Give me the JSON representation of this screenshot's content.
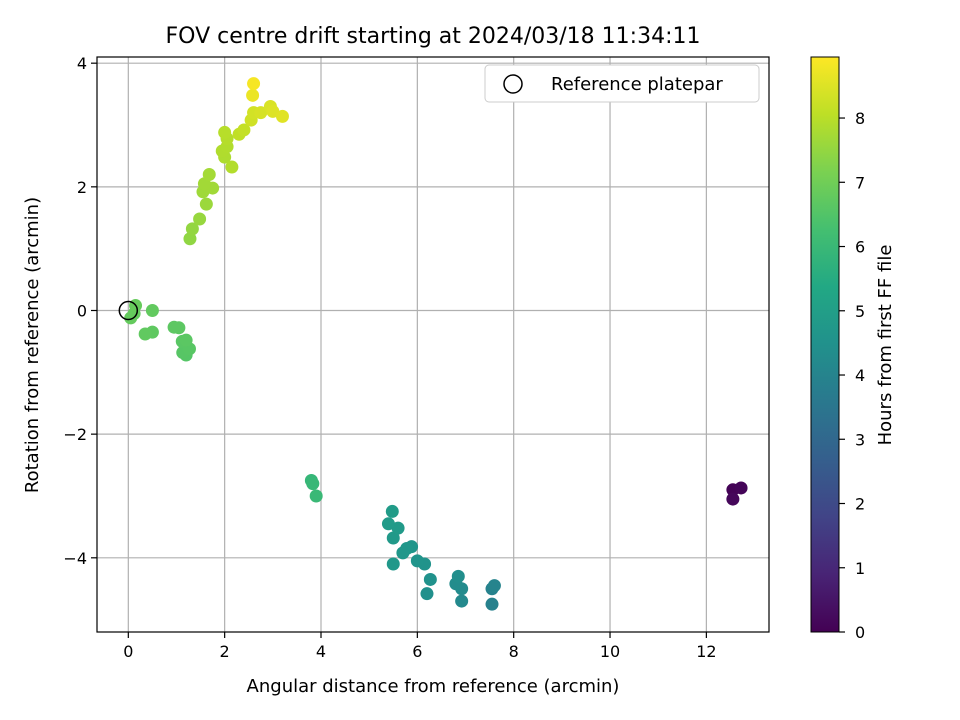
{
  "chart_data": {
    "type": "scatter",
    "title": "FOV centre drift starting at 2024/03/18 11:34:11",
    "xlabel": "Angular distance from reference (arcmin)",
    "ylabel": "Rotation from reference (arcmin)",
    "xlim": [
      -0.65,
      13.3
    ],
    "ylim": [
      -5.2,
      4.1
    ],
    "xticks": [
      0,
      2,
      4,
      6,
      8,
      10,
      12
    ],
    "yticks": [
      -4,
      -2,
      0,
      2,
      4
    ],
    "xtick_labels": [
      "0",
      "2",
      "4",
      "6",
      "8",
      "10",
      "12"
    ],
    "ytick_labels": [
      "−4",
      "−2",
      "0",
      "2",
      "4"
    ],
    "grid": true,
    "legend": {
      "placement": "top-right",
      "entries": [
        "Reference platepar"
      ]
    },
    "reference_point": {
      "x": 0.0,
      "y": 0.0
    },
    "colormap": "viridis",
    "colorbar": {
      "label": "Hours from first FF file",
      "range": [
        0,
        8.95
      ],
      "ticks": [
        0,
        1,
        2,
        3,
        4,
        5,
        6,
        7,
        8
      ],
      "tick_labels": [
        "0",
        "1",
        "2",
        "3",
        "4",
        "5",
        "6",
        "7",
        "8"
      ]
    },
    "points": [
      {
        "x": 12.55,
        "y": -2.9,
        "h": 0.05
      },
      {
        "x": 12.72,
        "y": -2.87,
        "h": 0.1
      },
      {
        "x": 12.55,
        "y": -3.05,
        "h": 0.15
      },
      {
        "x": 7.55,
        "y": -4.75,
        "h": 3.9
      },
      {
        "x": 7.55,
        "y": -4.5,
        "h": 3.95
      },
      {
        "x": 7.6,
        "y": -4.45,
        "h": 4.0
      },
      {
        "x": 6.92,
        "y": -4.7,
        "h": 4.2
      },
      {
        "x": 6.92,
        "y": -4.5,
        "h": 4.25
      },
      {
        "x": 6.8,
        "y": -4.42,
        "h": 4.3
      },
      {
        "x": 6.85,
        "y": -4.3,
        "h": 4.35
      },
      {
        "x": 6.2,
        "y": -4.58,
        "h": 4.45
      },
      {
        "x": 6.27,
        "y": -4.35,
        "h": 4.5
      },
      {
        "x": 6.15,
        "y": -4.1,
        "h": 4.55
      },
      {
        "x": 6.0,
        "y": -4.05,
        "h": 4.6
      },
      {
        "x": 5.88,
        "y": -3.82,
        "h": 4.65
      },
      {
        "x": 5.78,
        "y": -3.85,
        "h": 4.7
      },
      {
        "x": 5.7,
        "y": -3.92,
        "h": 4.72
      },
      {
        "x": 5.5,
        "y": -4.1,
        "h": 4.75
      },
      {
        "x": 5.5,
        "y": -3.68,
        "h": 4.8
      },
      {
        "x": 5.6,
        "y": -3.52,
        "h": 4.82
      },
      {
        "x": 5.4,
        "y": -3.45,
        "h": 4.85
      },
      {
        "x": 5.48,
        "y": -3.25,
        "h": 4.88
      },
      {
        "x": 3.8,
        "y": -2.75,
        "h": 5.9
      },
      {
        "x": 3.83,
        "y": -2.8,
        "h": 5.95
      },
      {
        "x": 3.9,
        "y": -3.0,
        "h": 6.0
      },
      {
        "x": 1.2,
        "y": -0.72,
        "h": 6.55
      },
      {
        "x": 1.13,
        "y": -0.68,
        "h": 6.58
      },
      {
        "x": 1.27,
        "y": -0.62,
        "h": 6.6
      },
      {
        "x": 1.12,
        "y": -0.5,
        "h": 6.62
      },
      {
        "x": 1.2,
        "y": -0.48,
        "h": 6.64
      },
      {
        "x": 1.05,
        "y": -0.28,
        "h": 6.66
      },
      {
        "x": 0.95,
        "y": -0.27,
        "h": 6.68
      },
      {
        "x": 0.5,
        "y": -0.35,
        "h": 6.72
      },
      {
        "x": 0.35,
        "y": -0.38,
        "h": 6.74
      },
      {
        "x": 0.5,
        "y": 0.0,
        "h": 6.76
      },
      {
        "x": 0.05,
        "y": -0.12,
        "h": 6.8
      },
      {
        "x": 0.12,
        "y": -0.05,
        "h": 6.82
      },
      {
        "x": 0.15,
        "y": 0.08,
        "h": 6.84
      },
      {
        "x": 1.28,
        "y": 1.16,
        "h": 7.45
      },
      {
        "x": 1.33,
        "y": 1.32,
        "h": 7.5
      },
      {
        "x": 1.48,
        "y": 1.48,
        "h": 7.55
      },
      {
        "x": 1.62,
        "y": 1.72,
        "h": 7.6
      },
      {
        "x": 1.55,
        "y": 1.92,
        "h": 7.65
      },
      {
        "x": 1.75,
        "y": 1.98,
        "h": 7.68
      },
      {
        "x": 1.58,
        "y": 2.05,
        "h": 7.7
      },
      {
        "x": 1.68,
        "y": 2.2,
        "h": 7.72
      },
      {
        "x": 2.0,
        "y": 2.48,
        "h": 7.85
      },
      {
        "x": 1.95,
        "y": 2.58,
        "h": 7.88
      },
      {
        "x": 2.05,
        "y": 2.65,
        "h": 7.9
      },
      {
        "x": 2.15,
        "y": 2.32,
        "h": 7.92
      },
      {
        "x": 2.05,
        "y": 2.78,
        "h": 7.95
      },
      {
        "x": 2.0,
        "y": 2.88,
        "h": 7.98
      },
      {
        "x": 2.3,
        "y": 2.85,
        "h": 8.1
      },
      {
        "x": 2.4,
        "y": 2.92,
        "h": 8.15
      },
      {
        "x": 2.55,
        "y": 3.08,
        "h": 8.3
      },
      {
        "x": 2.6,
        "y": 3.2,
        "h": 8.35
      },
      {
        "x": 2.75,
        "y": 3.2,
        "h": 8.4
      },
      {
        "x": 2.95,
        "y": 3.3,
        "h": 8.45
      },
      {
        "x": 3.0,
        "y": 3.22,
        "h": 8.5
      },
      {
        "x": 3.2,
        "y": 3.14,
        "h": 8.55
      },
      {
        "x": 2.58,
        "y": 3.48,
        "h": 8.7
      },
      {
        "x": 2.6,
        "y": 3.67,
        "h": 8.85
      }
    ]
  }
}
